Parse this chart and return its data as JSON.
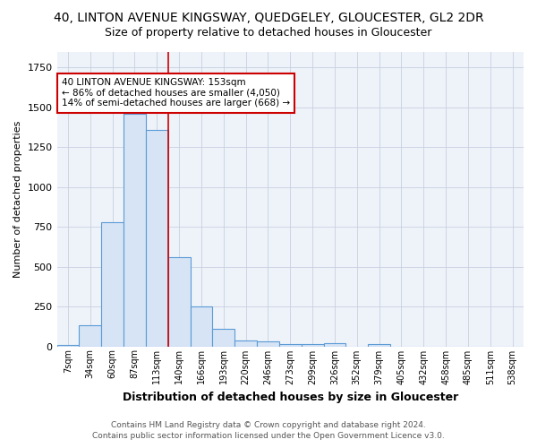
{
  "title": "40, LINTON AVENUE KINGSWAY, QUEDGELEY, GLOUCESTER, GL2 2DR",
  "subtitle": "Size of property relative to detached houses in Gloucester",
  "xlabel": "Distribution of detached houses by size in Gloucester",
  "ylabel": "Number of detached properties",
  "categories": [
    "7sqm",
    "34sqm",
    "60sqm",
    "87sqm",
    "113sqm",
    "140sqm",
    "166sqm",
    "193sqm",
    "220sqm",
    "246sqm",
    "273sqm",
    "299sqm",
    "326sqm",
    "352sqm",
    "379sqm",
    "405sqm",
    "432sqm",
    "458sqm",
    "485sqm",
    "511sqm",
    "538sqm"
  ],
  "values": [
    10,
    135,
    780,
    1460,
    1360,
    560,
    250,
    110,
    35,
    30,
    15,
    15,
    20,
    0,
    15,
    0,
    0,
    0,
    0,
    0,
    0
  ],
  "bar_color": "#d6e4f5",
  "bar_edge_color": "#5b9bd5",
  "bar_linewidth": 0.8,
  "vline_x": 4.5,
  "vline_color": "#cc0000",
  "annotation_text": "40 LINTON AVENUE KINGSWAY: 153sqm\n← 86% of detached houses are smaller (4,050)\n14% of semi-detached houses are larger (668) →",
  "annotation_box_color": "white",
  "annotation_box_edge": "#cc0000",
  "ylim": [
    0,
    1850
  ],
  "footnote1": "Contains HM Land Registry data © Crown copyright and database right 2024.",
  "footnote2": "Contains public sector information licensed under the Open Government Licence v3.0.",
  "bg_color": "#ffffff",
  "plot_bg_color": "#eef2f9",
  "grid_color": "#c8d0e0",
  "title_fontsize": 10,
  "subtitle_fontsize": 9
}
